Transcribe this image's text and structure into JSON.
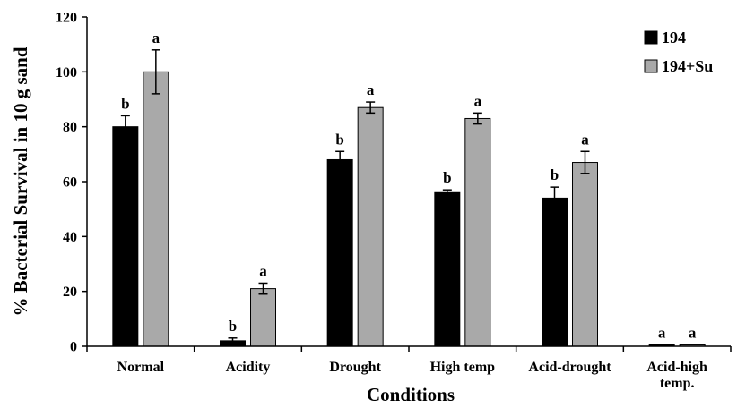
{
  "chart_data": {
    "type": "bar",
    "xlabel": "Conditions",
    "ylabel": "% Bacterial Survival in 10 g sand",
    "ylim": [
      0,
      120
    ],
    "yticks": [
      0,
      20,
      40,
      60,
      80,
      100,
      120
    ],
    "grid": false,
    "legend_position": "top-right",
    "categories": [
      [
        "Normal"
      ],
      [
        "Acidity"
      ],
      [
        "Drought"
      ],
      [
        "High temp"
      ],
      [
        "Acid-drought"
      ],
      [
        "Acid-high",
        "temp."
      ]
    ],
    "series": [
      {
        "name": "194",
        "color": "#000000",
        "values": [
          80,
          2,
          68,
          56,
          54,
          0.5
        ],
        "errors": [
          4,
          1,
          3,
          1,
          4,
          0
        ],
        "labels": [
          "b",
          "b",
          "b",
          "b",
          "b",
          "a"
        ]
      },
      {
        "name": "194+Su",
        "color": "#a9a9a9",
        "values": [
          100,
          21,
          87,
          83,
          67,
          0.5
        ],
        "errors": [
          8,
          2,
          2,
          2,
          4,
          0
        ],
        "labels": [
          "a",
          "a",
          "a",
          "a",
          "a",
          "a"
        ]
      }
    ]
  }
}
